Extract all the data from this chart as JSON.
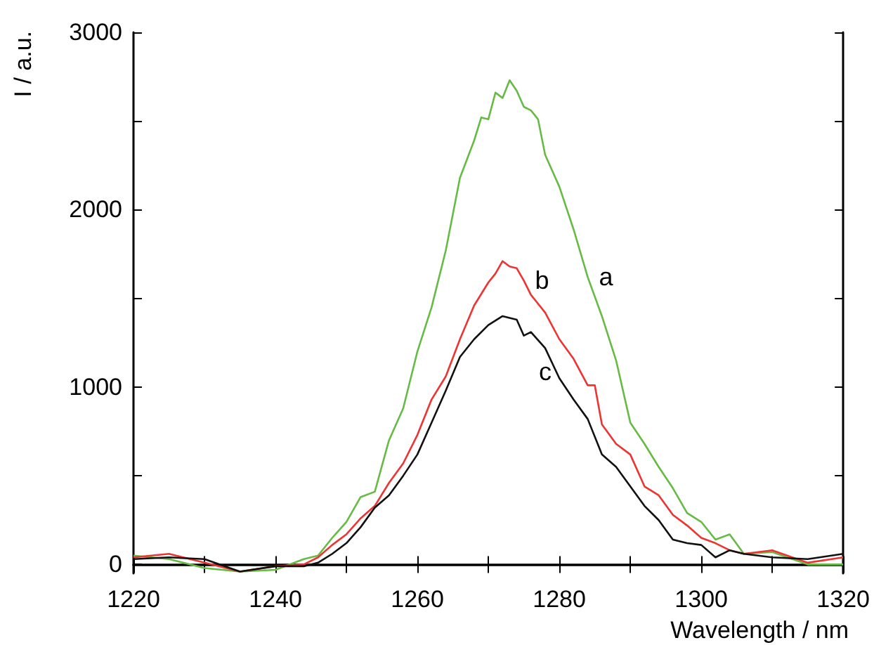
{
  "chart_data": {
    "type": "line",
    "xlabel": "Wavelength / nm",
    "ylabel": "I / a.u.",
    "xlim": [
      1220,
      1320
    ],
    "ylim": [
      -50,
      3000
    ],
    "xticks": [
      1220,
      {
        "value": 1230,
        "label": null
      },
      1240,
      {
        "value": 1250,
        "label": null
      },
      1260,
      {
        "value": 1270,
        "label": null
      },
      1280,
      {
        "value": 1290,
        "label": null
      },
      1300,
      {
        "value": 1310,
        "label": null
      },
      1320
    ],
    "yticks": [
      0,
      {
        "value": 500,
        "label": null
      },
      1000,
      {
        "value": 1500,
        "label": null
      },
      2000,
      {
        "value": 2500,
        "label": null
      },
      3000
    ],
    "grid": false,
    "marker": "none",
    "line_style": "solid",
    "series": [
      {
        "name": "a",
        "color": "#66bb44",
        "x": [
          1220,
          1225,
          1230,
          1235,
          1240,
          1244,
          1246,
          1248,
          1250,
          1252,
          1254,
          1256,
          1258,
          1260,
          1262,
          1264,
          1266,
          1268,
          1269,
          1270,
          1271,
          1272,
          1273,
          1274,
          1275,
          1276,
          1277,
          1278,
          1280,
          1282,
          1284,
          1286,
          1288,
          1290,
          1292,
          1294,
          1296,
          1298,
          1300,
          1302,
          1304,
          1306,
          1310,
          1315,
          1320
        ],
        "values": [
          50,
          30,
          -20,
          -40,
          -30,
          30,
          50,
          150,
          240,
          380,
          410,
          700,
          880,
          1200,
          1450,
          1770,
          2180,
          2390,
          2520,
          2510,
          2660,
          2630,
          2730,
          2670,
          2580,
          2560,
          2510,
          2310,
          2130,
          1890,
          1620,
          1400,
          1150,
          800,
          680,
          550,
          430,
          290,
          240,
          140,
          170,
          60,
          70,
          0,
          0
        ]
      },
      {
        "name": "b",
        "color": "#ee3333",
        "x": [
          1220,
          1225,
          1230,
          1235,
          1240,
          1244,
          1246,
          1248,
          1250,
          1252,
          1254,
          1256,
          1258,
          1260,
          1262,
          1264,
          1266,
          1268,
          1270,
          1271,
          1272,
          1273,
          1274,
          1275,
          1276,
          1278,
          1280,
          1282,
          1284,
          1285,
          1286,
          1288,
          1290,
          1292,
          1294,
          1296,
          1298,
          1300,
          1302,
          1304,
          1306,
          1310,
          1315,
          1320
        ],
        "values": [
          40,
          60,
          10,
          -40,
          -10,
          0,
          40,
          110,
          170,
          260,
          330,
          460,
          570,
          730,
          930,
          1060,
          1270,
          1460,
          1590,
          1640,
          1710,
          1680,
          1670,
          1600,
          1520,
          1420,
          1270,
          1160,
          1010,
          1010,
          790,
          680,
          620,
          440,
          390,
          280,
          220,
          150,
          120,
          80,
          60,
          80,
          10,
          40
        ]
      },
      {
        "name": "c",
        "color": "#111111",
        "x": [
          1220,
          1225,
          1230,
          1235,
          1240,
          1244,
          1246,
          1248,
          1250,
          1252,
          1254,
          1256,
          1258,
          1260,
          1262,
          1264,
          1266,
          1268,
          1270,
          1272,
          1274,
          1275,
          1276,
          1278,
          1280,
          1282,
          1284,
          1286,
          1288,
          1290,
          1292,
          1294,
          1296,
          1298,
          1300,
          1302,
          1304,
          1306,
          1310,
          1315,
          1320
        ],
        "values": [
          30,
          40,
          30,
          -40,
          -10,
          -10,
          10,
          60,
          120,
          210,
          320,
          390,
          500,
          620,
          800,
          980,
          1170,
          1270,
          1350,
          1400,
          1380,
          1290,
          1310,
          1220,
          1050,
          930,
          820,
          620,
          550,
          440,
          330,
          250,
          140,
          120,
          110,
          40,
          80,
          60,
          40,
          30,
          60
        ]
      }
    ]
  }
}
